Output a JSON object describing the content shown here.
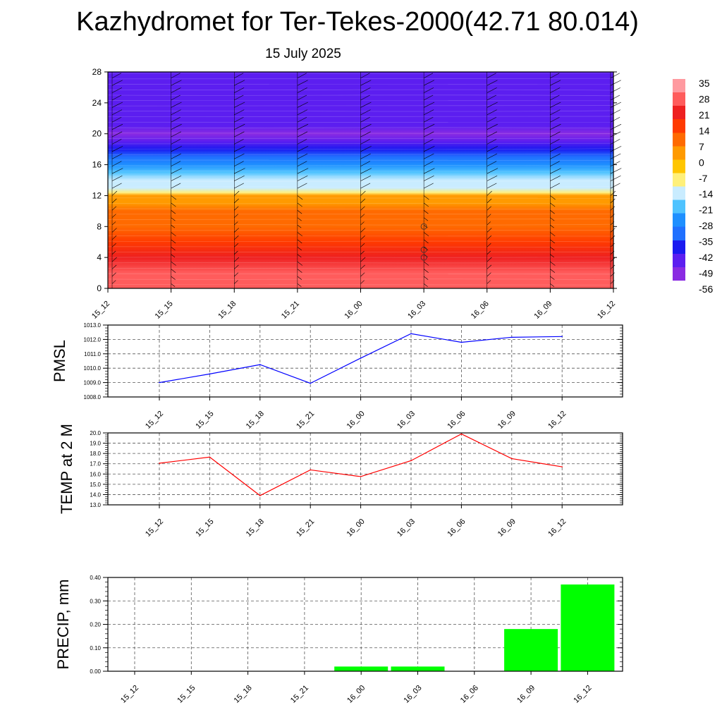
{
  "header": {
    "title": "Kazhydromet for Ter-Tekes-2000(42.71 80.014)",
    "subtitle": "15 July 2025"
  },
  "chart_data": [
    {
      "type": "heatmap",
      "title": "",
      "xlabel": "",
      "ylabel": "",
      "categories": [
        "15_12",
        "15_15",
        "15_18",
        "15_21",
        "16_00",
        "16_03",
        "16_06",
        "16_09",
        "16_12"
      ],
      "y_ticks": [
        0,
        4,
        8,
        12,
        16,
        20,
        24,
        28
      ],
      "ylim": [
        0,
        28
      ],
      "value_profile": {
        "levels": [
          0,
          2,
          4,
          6,
          8,
          10,
          11,
          12,
          12.4,
          13,
          14,
          15,
          16,
          17,
          18,
          19,
          20,
          21,
          22,
          24,
          26,
          28
        ],
        "temperature": [
          33,
          28,
          24,
          18,
          13,
          7,
          3,
          0,
          -12,
          -17,
          -22,
          -28,
          -33,
          -40,
          -48,
          -56,
          -62,
          -58,
          -59,
          -59,
          -59,
          -59
        ]
      },
      "colorbar": {
        "labels": [
          "35",
          "28",
          "21",
          "14",
          "7",
          "0",
          "-7",
          "-14",
          "-21",
          "-28",
          "-35",
          "-42",
          "-49",
          "-56"
        ],
        "colors": [
          "#ff9aa0",
          "#ff5c5c",
          "#ee2020",
          "#ff3a00",
          "#ff6a00",
          "#ff9a00",
          "#ffc600",
          "#fff07a",
          "#c9ecff",
          "#4fc3ff",
          "#1e8fff",
          "#2070ff",
          "#1a1af0",
          "#5c1ef0",
          "#8a2be2"
        ]
      }
    },
    {
      "type": "line",
      "ylabel": "PMSL",
      "categories": [
        "15_12",
        "15_15",
        "15_18",
        "15_21",
        "16_00",
        "16_03",
        "16_06",
        "16_09",
        "16_12"
      ],
      "series": [
        {
          "values": [
            1009.0,
            1009.6,
            1010.25,
            1008.95,
            1010.7,
            1012.4,
            1011.8,
            1012.15,
            1012.2
          ]
        }
      ],
      "ylim": [
        1008.0,
        1013.0
      ],
      "y_ticks": [
        "1008.0",
        "1009.0",
        "1010.0",
        "1011.0",
        "1012.0",
        "1013.0"
      ],
      "color": "#0000ff",
      "grid": true
    },
    {
      "type": "line",
      "ylabel": "TEMP at 2 M",
      "categories": [
        "15_12",
        "15_15",
        "15_18",
        "15_21",
        "16_00",
        "16_03",
        "16_06",
        "16_09",
        "16_12"
      ],
      "series": [
        {
          "values": [
            17.05,
            17.65,
            13.9,
            16.4,
            15.75,
            17.3,
            19.9,
            17.5,
            16.7
          ]
        }
      ],
      "ylim": [
        13.0,
        20.0
      ],
      "y_ticks": [
        "13.0",
        "14.0",
        "15.0",
        "16.0",
        "17.0",
        "18.0",
        "19.0",
        "20.0"
      ],
      "color": "#ff0000",
      "grid": true
    },
    {
      "type": "bar",
      "ylabel": "PRECIP, mm",
      "categories": [
        "15_12",
        "15_15",
        "15_18",
        "15_21",
        "16_00",
        "16_03",
        "16_06",
        "16_09",
        "16_12"
      ],
      "values": [
        0,
        0,
        0,
        0,
        0.02,
        0.02,
        0,
        0.18,
        0.37
      ],
      "ylim": [
        0,
        0.4
      ],
      "y_ticks": [
        "0.00",
        "0.10",
        "0.20",
        "0.30",
        "0.40"
      ],
      "color": "#00ff00",
      "grid": true
    }
  ]
}
